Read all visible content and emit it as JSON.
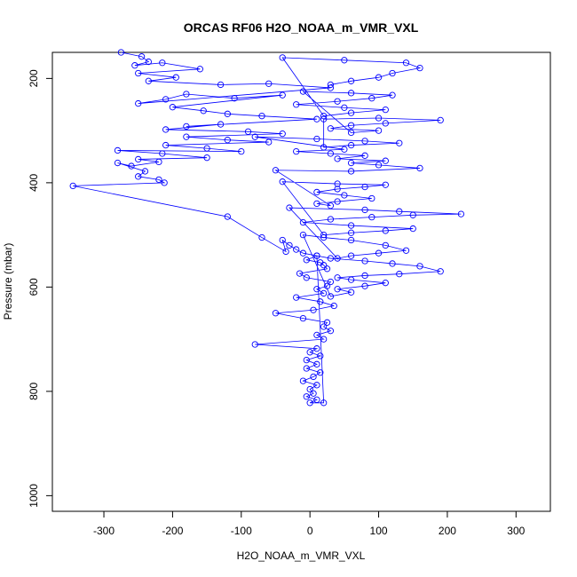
{
  "chart_data": {
    "type": "scatter",
    "title": "ORCAS RF06 H2O_NOAA_m_VMR_VXL",
    "xlabel": "H2O_NOAA_m_VMR_VXL",
    "ylabel": "Pressure (mbar)",
    "xlim": [
      -375,
      350
    ],
    "ylim": [
      1030,
      150
    ],
    "y_reversed": true,
    "x_ticks": [
      -300,
      -200,
      -100,
      0,
      100,
      200,
      300
    ],
    "y_ticks": [
      200,
      400,
      600,
      800,
      1000
    ],
    "grid": false,
    "color": "#0000ff",
    "series": [
      {
        "style": "line+points",
        "points": [
          [
            -275,
            150
          ],
          [
            -245,
            158
          ],
          [
            -235,
            168
          ],
          [
            -255,
            175
          ],
          [
            -215,
            170
          ],
          [
            -160,
            182
          ],
          [
            -250,
            190
          ],
          [
            -195,
            198
          ],
          [
            -235,
            205
          ],
          [
            -130,
            212
          ],
          [
            -60,
            210
          ],
          [
            30,
            218
          ],
          [
            -250,
            248
          ],
          [
            -210,
            240
          ],
          [
            -180,
            230
          ],
          [
            -110,
            238
          ],
          [
            -40,
            232
          ],
          [
            -200,
            255
          ],
          [
            -155,
            262
          ],
          [
            -120,
            268
          ],
          [
            -70,
            272
          ],
          [
            10,
            278
          ],
          [
            -180,
            292
          ],
          [
            -130,
            288
          ],
          [
            -210,
            298
          ],
          [
            -90,
            302
          ],
          [
            -40,
            306
          ],
          [
            -180,
            312
          ],
          [
            -120,
            318
          ],
          [
            -60,
            322
          ],
          [
            -210,
            328
          ],
          [
            -150,
            334
          ],
          [
            -100,
            340
          ],
          [
            -280,
            338
          ],
          [
            -215,
            344
          ],
          [
            -150,
            352
          ],
          [
            -250,
            355
          ],
          [
            -220,
            360
          ],
          [
            -260,
            368
          ],
          [
            -280,
            362
          ],
          [
            -240,
            378
          ],
          [
            -250,
            388
          ],
          [
            -220,
            394
          ],
          [
            -212,
            400
          ],
          [
            -345,
            406
          ],
          [
            -120,
            465
          ],
          [
            -70,
            505
          ],
          [
            -35,
            532
          ],
          [
            -40,
            510
          ],
          [
            -30,
            520
          ],
          [
            -20,
            528
          ],
          [
            -10,
            535
          ],
          [
            10,
            540
          ],
          [
            -5,
            548
          ],
          [
            15,
            553
          ],
          [
            20,
            558
          ],
          [
            25,
            565
          ],
          [
            -15,
            574
          ],
          [
            -5,
            582
          ],
          [
            30,
            590
          ],
          [
            25,
            598
          ],
          [
            10,
            604
          ],
          [
            20,
            612
          ],
          [
            -20,
            620
          ],
          [
            15,
            628
          ],
          [
            35,
            636
          ],
          [
            5,
            644
          ],
          [
            -50,
            650
          ],
          [
            -10,
            660
          ],
          [
            25,
            668
          ],
          [
            20,
            676
          ],
          [
            30,
            684
          ],
          [
            10,
            692
          ],
          [
            20,
            700
          ],
          [
            -80,
            710
          ],
          [
            10,
            718
          ],
          [
            0,
            725
          ],
          [
            15,
            732
          ],
          [
            -5,
            740
          ],
          [
            10,
            748
          ],
          [
            -5,
            756
          ],
          [
            15,
            764
          ],
          [
            5,
            772
          ],
          [
            -10,
            780
          ],
          [
            10,
            788
          ],
          [
            0,
            796
          ],
          [
            5,
            804
          ],
          [
            -5,
            810
          ],
          [
            10,
            816
          ],
          [
            0,
            822
          ],
          [
            20,
            822
          ],
          [
            10,
            540
          ],
          [
            30,
            545
          ],
          [
            80,
            550
          ],
          [
            120,
            555
          ],
          [
            160,
            560
          ],
          [
            190,
            570
          ],
          [
            130,
            575
          ],
          [
            80,
            578
          ],
          [
            40,
            582
          ],
          [
            60,
            586
          ],
          [
            110,
            592
          ],
          [
            80,
            598
          ],
          [
            40,
            604
          ],
          [
            60,
            610
          ],
          [
            30,
            618
          ],
          [
            -10,
            500
          ],
          [
            20,
            505
          ],
          [
            60,
            510
          ],
          [
            110,
            520
          ],
          [
            140,
            530
          ],
          [
            100,
            535
          ],
          [
            60,
            540
          ],
          [
            40,
            545
          ],
          [
            -30,
            448
          ],
          [
            80,
            452
          ],
          [
            130,
            455
          ],
          [
            220,
            460
          ],
          [
            150,
            462
          ],
          [
            90,
            466
          ],
          [
            30,
            470
          ],
          [
            -10,
            476
          ],
          [
            60,
            482
          ],
          [
            150,
            488
          ],
          [
            110,
            492
          ],
          [
            60,
            496
          ],
          [
            20,
            500
          ],
          [
            -40,
            398
          ],
          [
            40,
            402
          ],
          [
            110,
            404
          ],
          [
            80,
            408
          ],
          [
            40,
            412
          ],
          [
            10,
            418
          ],
          [
            50,
            424
          ],
          [
            90,
            430
          ],
          [
            40,
            436
          ],
          [
            10,
            440
          ],
          [
            30,
            444
          ],
          [
            -50,
            376
          ],
          [
            60,
            378
          ],
          [
            160,
            372
          ],
          [
            100,
            366
          ],
          [
            60,
            362
          ],
          [
            110,
            358
          ],
          [
            40,
            354
          ],
          [
            80,
            348
          ],
          [
            30,
            344
          ],
          [
            -20,
            340
          ],
          [
            50,
            336
          ],
          [
            -80,
            312
          ],
          [
            10,
            316
          ],
          [
            80,
            320
          ],
          [
            130,
            324
          ],
          [
            60,
            328
          ],
          [
            20,
            332
          ],
          [
            20,
            278
          ],
          [
            100,
            276
          ],
          [
            190,
            280
          ],
          [
            110,
            286
          ],
          [
            60,
            290
          ],
          [
            30,
            296
          ],
          [
            100,
            300
          ],
          [
            60,
            304
          ],
          [
            -10,
            225
          ],
          [
            60,
            228
          ],
          [
            120,
            232
          ],
          [
            90,
            238
          ],
          [
            40,
            244
          ],
          [
            -20,
            250
          ],
          [
            50,
            256
          ],
          [
            110,
            260
          ],
          [
            60,
            266
          ],
          [
            20,
            272
          ],
          [
            -40,
            160
          ],
          [
            50,
            165
          ],
          [
            140,
            170
          ],
          [
            160,
            180
          ],
          [
            120,
            190
          ],
          [
            100,
            198
          ],
          [
            60,
            205
          ],
          [
            30,
            212
          ]
        ]
      }
    ]
  }
}
